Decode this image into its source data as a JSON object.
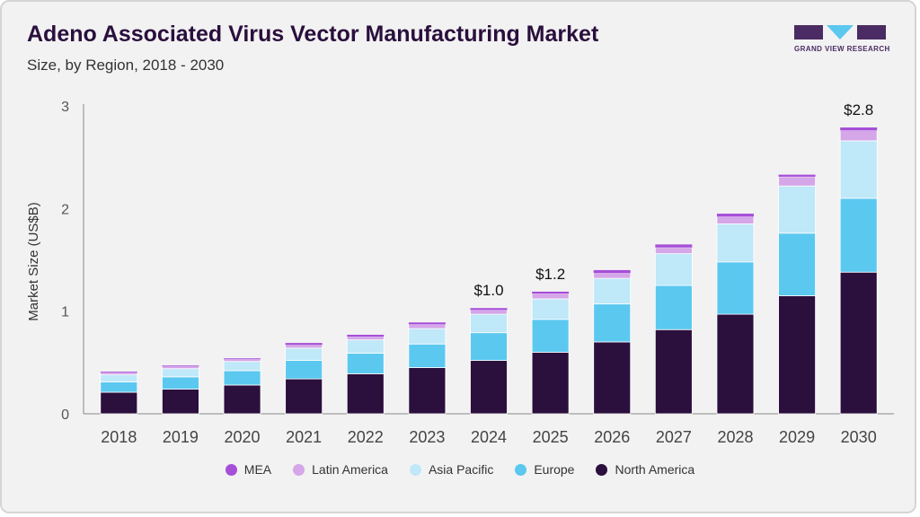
{
  "header": {
    "title": "Adeno Associated Virus Vector Manufacturing Market",
    "subtitle": "Size, by Region, 2018 - 2030"
  },
  "logo": {
    "text": "GRAND VIEW RESEARCH"
  },
  "chart_data": {
    "type": "bar",
    "stacked": true,
    "title": "Adeno Associated Virus Vector Manufacturing Market",
    "subtitle": "Size, by Region, 2018 - 2030",
    "xlabel": "",
    "ylabel": "Market Size (US$B)",
    "ylim": [
      0,
      3
    ],
    "yticks": [
      0,
      1,
      2,
      3
    ],
    "categories": [
      "2018",
      "2019",
      "2020",
      "2021",
      "2022",
      "2023",
      "2024",
      "2025",
      "2026",
      "2027",
      "2028",
      "2029",
      "2030"
    ],
    "series": [
      {
        "name": "North America",
        "color": "#2b0f3d",
        "values": [
          0.21,
          0.24,
          0.28,
          0.34,
          0.39,
          0.45,
          0.52,
          0.6,
          0.7,
          0.82,
          0.97,
          1.15,
          1.38
        ]
      },
      {
        "name": "Europe",
        "color": "#5bc8f0",
        "values": [
          0.1,
          0.12,
          0.14,
          0.18,
          0.2,
          0.23,
          0.27,
          0.32,
          0.37,
          0.43,
          0.51,
          0.61,
          0.72
        ]
      },
      {
        "name": "Asia Pacific",
        "color": "#bfe8f8",
        "values": [
          0.07,
          0.08,
          0.09,
          0.12,
          0.13,
          0.15,
          0.18,
          0.2,
          0.25,
          0.31,
          0.37,
          0.46,
          0.56
        ]
      },
      {
        "name": "Latin America",
        "color": "#d5a6e8",
        "values": [
          0.02,
          0.02,
          0.02,
          0.03,
          0.03,
          0.04,
          0.04,
          0.05,
          0.05,
          0.06,
          0.07,
          0.09,
          0.1
        ]
      },
      {
        "name": "MEA",
        "color": "#a64fd8",
        "values": [
          0.01,
          0.01,
          0.01,
          0.02,
          0.02,
          0.02,
          0.02,
          0.02,
          0.03,
          0.03,
          0.03,
          0.02,
          0.03
        ]
      }
    ],
    "legend_order": [
      "MEA",
      "Latin America",
      "Asia Pacific",
      "Europe",
      "North America"
    ],
    "annotations": [
      {
        "category": "2024",
        "label": "$1.0"
      },
      {
        "category": "2025",
        "label": "$1.2"
      },
      {
        "category": "2030",
        "label": "$2.8"
      }
    ],
    "grid": false,
    "legend_position": "bottom"
  }
}
